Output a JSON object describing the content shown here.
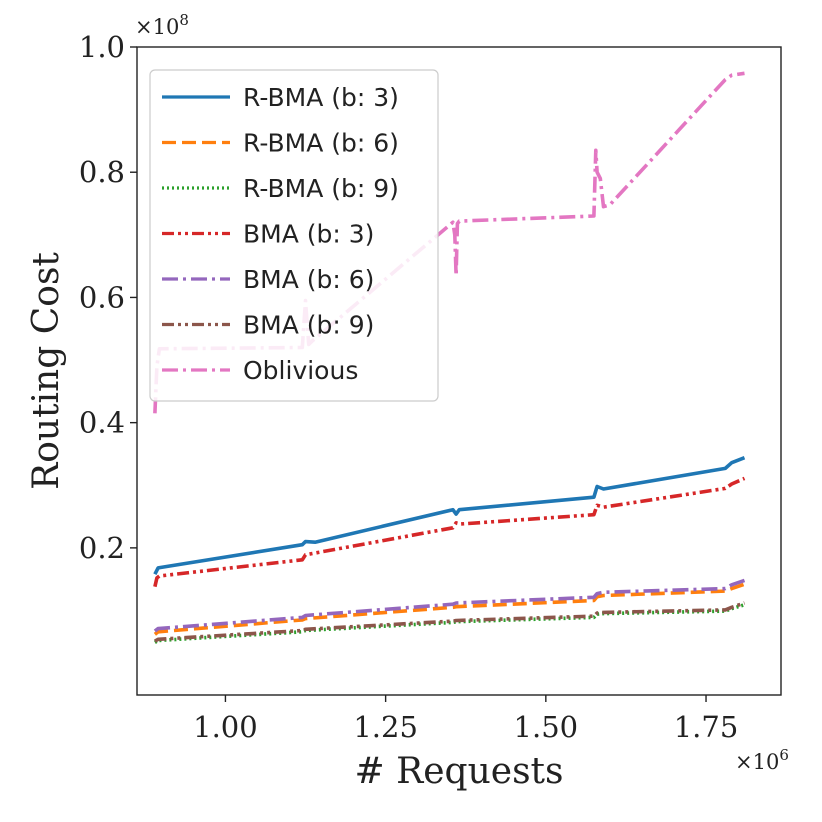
{
  "chart_data": {
    "type": "line",
    "xlabel": "# Requests",
    "ylabel": "Routing Cost",
    "x_multiplier": "×10^6",
    "y_multiplier": "×10^8",
    "xlim": [
      0.862,
      1.867
    ],
    "ylim": [
      -0.035,
      1.0
    ],
    "x_ticks": [
      1.0,
      1.25,
      1.5,
      1.75
    ],
    "x_tick_labels": [
      "1.00",
      "1.25",
      "1.50",
      "1.75"
    ],
    "y_ticks": [
      0.2,
      0.4,
      0.6,
      0.8,
      1.0
    ],
    "y_tick_labels": [
      "0.2",
      "0.4",
      "0.6",
      "0.8",
      "1.0"
    ],
    "legend_position": "top-left",
    "series": [
      {
        "name": "R-BMA (b: 3)",
        "color": "#1f77b4",
        "style": "solid",
        "x": [
          0.89,
          0.895,
          1.12,
          1.125,
          1.14,
          1.355,
          1.36,
          1.365,
          1.575,
          1.58,
          1.59,
          1.78,
          1.79,
          1.81
        ],
        "y": [
          0.158,
          0.168,
          0.205,
          0.21,
          0.209,
          0.261,
          0.254,
          0.261,
          0.281,
          0.298,
          0.294,
          0.327,
          0.336,
          0.344
        ]
      },
      {
        "name": "R-BMA (b: 6)",
        "color": "#ff7f0e",
        "style": "dashed",
        "x": [
          0.89,
          0.895,
          1.12,
          1.125,
          1.355,
          1.36,
          1.575,
          1.58,
          1.59,
          1.78,
          1.79,
          1.81
        ],
        "y": [
          0.062,
          0.066,
          0.085,
          0.087,
          0.105,
          0.106,
          0.116,
          0.122,
          0.124,
          0.131,
          0.135,
          0.142
        ]
      },
      {
        "name": "R-BMA (b: 9)",
        "color": "#2ca02c",
        "style": "dotted",
        "x": [
          0.89,
          0.895,
          1.12,
          1.125,
          1.355,
          1.36,
          1.575,
          1.58,
          1.59,
          1.78,
          1.79,
          1.81
        ],
        "y": [
          0.049,
          0.052,
          0.066,
          0.068,
          0.081,
          0.082,
          0.089,
          0.094,
          0.095,
          0.099,
          0.103,
          0.109
        ]
      },
      {
        "name": "BMA (b: 3)",
        "color": "#d62728",
        "style": "dashdotdot",
        "x": [
          0.89,
          0.893,
          0.897,
          1.12,
          1.125,
          1.355,
          1.36,
          1.365,
          1.575,
          1.58,
          1.59,
          1.78,
          1.79,
          1.81
        ],
        "y": [
          0.138,
          0.152,
          0.155,
          0.181,
          0.189,
          0.232,
          0.24,
          0.238,
          0.253,
          0.268,
          0.265,
          0.295,
          0.302,
          0.311
        ]
      },
      {
        "name": "BMA (b: 6)",
        "color": "#9467bd",
        "style": "dashdot",
        "x": [
          0.89,
          0.895,
          1.12,
          1.125,
          1.355,
          1.36,
          1.575,
          1.58,
          1.59,
          1.78,
          1.79,
          1.81
        ],
        "y": [
          0.067,
          0.071,
          0.089,
          0.092,
          0.11,
          0.112,
          0.121,
          0.127,
          0.129,
          0.135,
          0.141,
          0.148
        ]
      },
      {
        "name": "BMA (b: 9)",
        "color": "#8c564b",
        "style": "dashdotdot",
        "x": [
          0.89,
          0.895,
          1.12,
          1.125,
          1.355,
          1.36,
          1.575,
          1.58,
          1.59,
          1.78,
          1.79,
          1.81
        ],
        "y": [
          0.051,
          0.054,
          0.068,
          0.07,
          0.083,
          0.084,
          0.091,
          0.096,
          0.097,
          0.101,
          0.105,
          0.112
        ]
      },
      {
        "name": "Oblivious",
        "color": "#e377c2",
        "style": "dashdot",
        "x": [
          0.89,
          0.893,
          0.897,
          1.12,
          1.125,
          1.13,
          1.135,
          1.355,
          1.358,
          1.36,
          1.362,
          1.365,
          1.575,
          1.578,
          1.58,
          1.585,
          1.59,
          1.6,
          1.78,
          1.79,
          1.81
        ],
        "y": [
          0.415,
          0.49,
          0.518,
          0.52,
          0.595,
          0.525,
          0.53,
          0.72,
          0.7,
          0.635,
          0.718,
          0.722,
          0.73,
          0.835,
          0.8,
          0.79,
          0.745,
          0.748,
          0.948,
          0.955,
          0.958
        ]
      }
    ]
  }
}
